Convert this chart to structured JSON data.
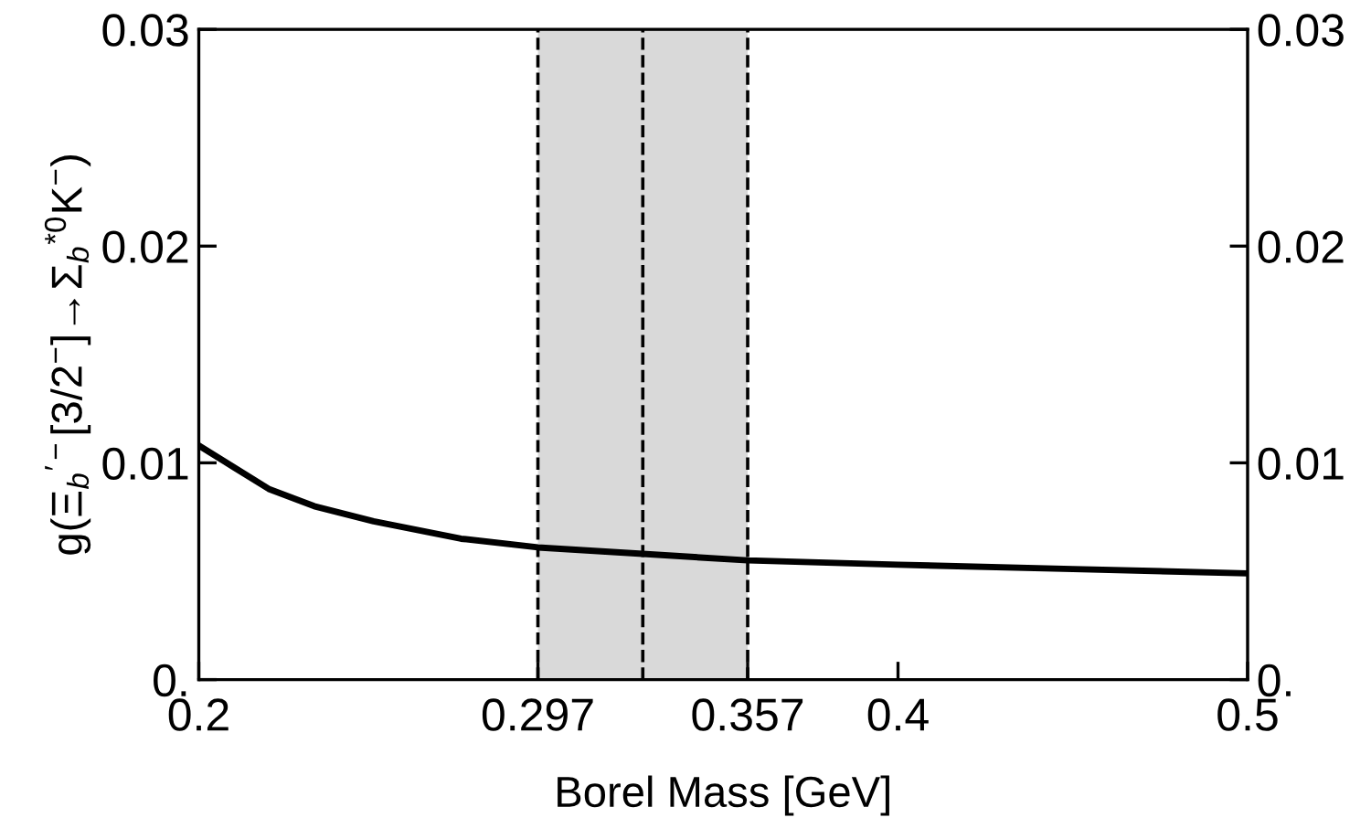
{
  "chart_data": {
    "type": "line",
    "xlabel": "Borel Mass [GeV]",
    "ylabel": "g(Ξ$_{b}$$^{′−}$[3/2$^{−}$]→Σ$_{b}$$^{*0}$K$^{−}$)",
    "series": [
      {
        "color": "#000000",
        "x": [
          0.2,
          0.22,
          0.233,
          0.25,
          0.275,
          0.297,
          0.327,
          0.357,
          0.4,
          0.45,
          0.5
        ],
        "values": [
          0.0108,
          0.0088,
          0.008,
          0.0073,
          0.0065,
          0.0061,
          0.0058,
          0.0055,
          0.0053,
          0.0051,
          0.0049
        ]
      }
    ],
    "xlim": [
      0.2,
      0.5
    ],
    "xticks": [
      0.2,
      0.297,
      0.357,
      0.4,
      0.5
    ],
    "ylim": [
      0,
      0.03
    ],
    "yticks": [
      {
        "value": 0,
        "label": "0."
      },
      0.01,
      0.02,
      0.03
    ],
    "y2lim": [
      0,
      0.03
    ],
    "y2ticks": [
      {
        "value": 0,
        "label": "0."
      },
      0.01,
      0.02,
      0.03
    ],
    "bands": [
      {
        "axis": "x",
        "from": 0.297,
        "to": 0.357,
        "color": "#d9d9d9"
      }
    ],
    "ref_lines": [
      {
        "axis": "x",
        "value": 0.297,
        "line_style": "dashed",
        "color": "#000000"
      },
      {
        "axis": "x",
        "value": 0.327,
        "line_style": "dashed",
        "color": "#000000"
      },
      {
        "axis": "x",
        "value": 0.357,
        "line_style": "dashed",
        "color": "#000000"
      }
    ],
    "grid": false,
    "legend": false,
    "marker": "none",
    "line_style": "solid"
  }
}
